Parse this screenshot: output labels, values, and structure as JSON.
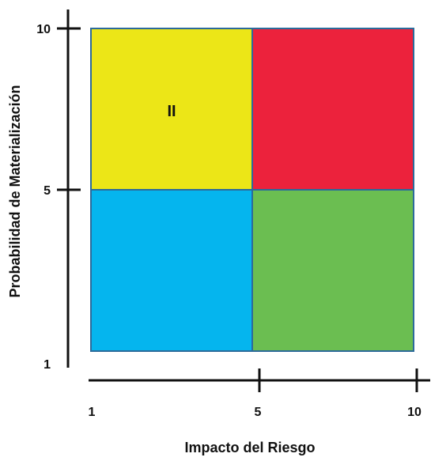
{
  "colors": {
    "top_left": "#ECE617",
    "top_right": "#EC223C",
    "bottom_left": "#05B5EE",
    "bottom_right": "#6BBE51",
    "border": "#2C6A9A",
    "axis": "#111111"
  },
  "quadrants": {
    "top_left_label": "II",
    "top_right_label": "",
    "bottom_left_label": "",
    "bottom_right_label": ""
  },
  "x_axis": {
    "title": "Impacto del Riesgo",
    "ticks": [
      "1",
      "5",
      "10"
    ]
  },
  "y_axis": {
    "title": "Probabilidad de Materialización",
    "ticks": [
      "10",
      "5",
      "1"
    ]
  }
}
